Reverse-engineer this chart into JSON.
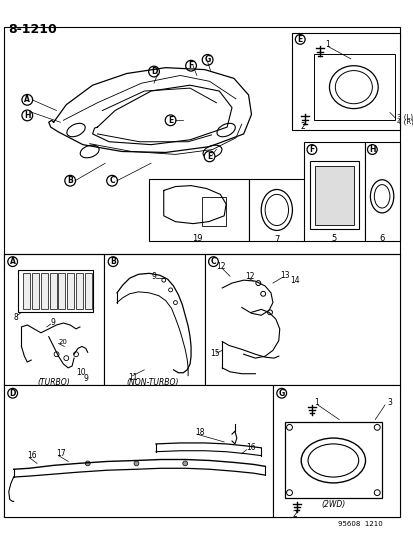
{
  "title": "8-1210",
  "footer": "95608  1210",
  "bg_color": "#ffffff",
  "line_color": "#000000",
  "text_color": "#000000",
  "turbo_label": "(TURBO)",
  "non_turbo_label": "(NON-TURBO)",
  "twowd_label": "(2WD)"
}
